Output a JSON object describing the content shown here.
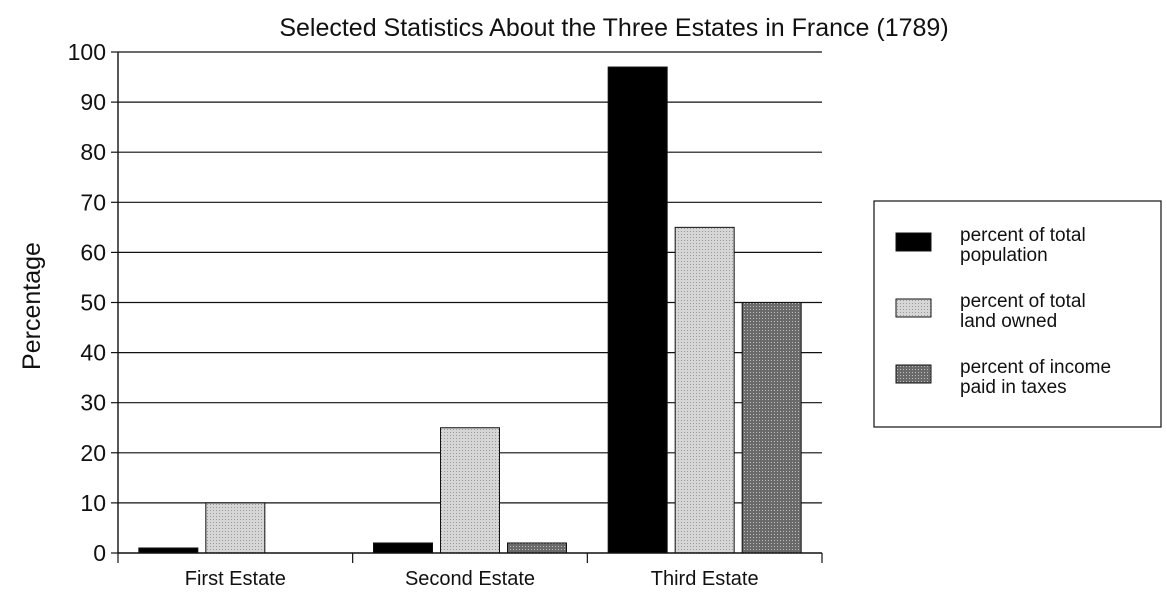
{
  "chart_data": {
    "type": "bar",
    "title": "Selected Statistics About the Three Estates in France (1789)",
    "xlabel": "",
    "ylabel": "Percentage",
    "ylim": [
      0,
      100
    ],
    "yticks": [
      "0",
      "10",
      "20",
      "30",
      "40",
      "50",
      "60",
      "70",
      "80",
      "90",
      "100"
    ],
    "grid": true,
    "legend_position": "right",
    "categories": [
      "First Estate",
      "Second Estate",
      "Third Estate"
    ],
    "series": [
      {
        "name_lines": [
          "percent of total",
          "population"
        ],
        "color": "#000000",
        "values": [
          1,
          2,
          97
        ]
      },
      {
        "name_lines": [
          "percent of total",
          "land owned"
        ],
        "color": "#c8c8c8",
        "values": [
          10,
          25,
          65
        ]
      },
      {
        "name_lines": [
          "percent of income",
          "paid in taxes"
        ],
        "color": "#7a7a7a",
        "values": [
          0,
          2,
          50
        ]
      }
    ]
  }
}
